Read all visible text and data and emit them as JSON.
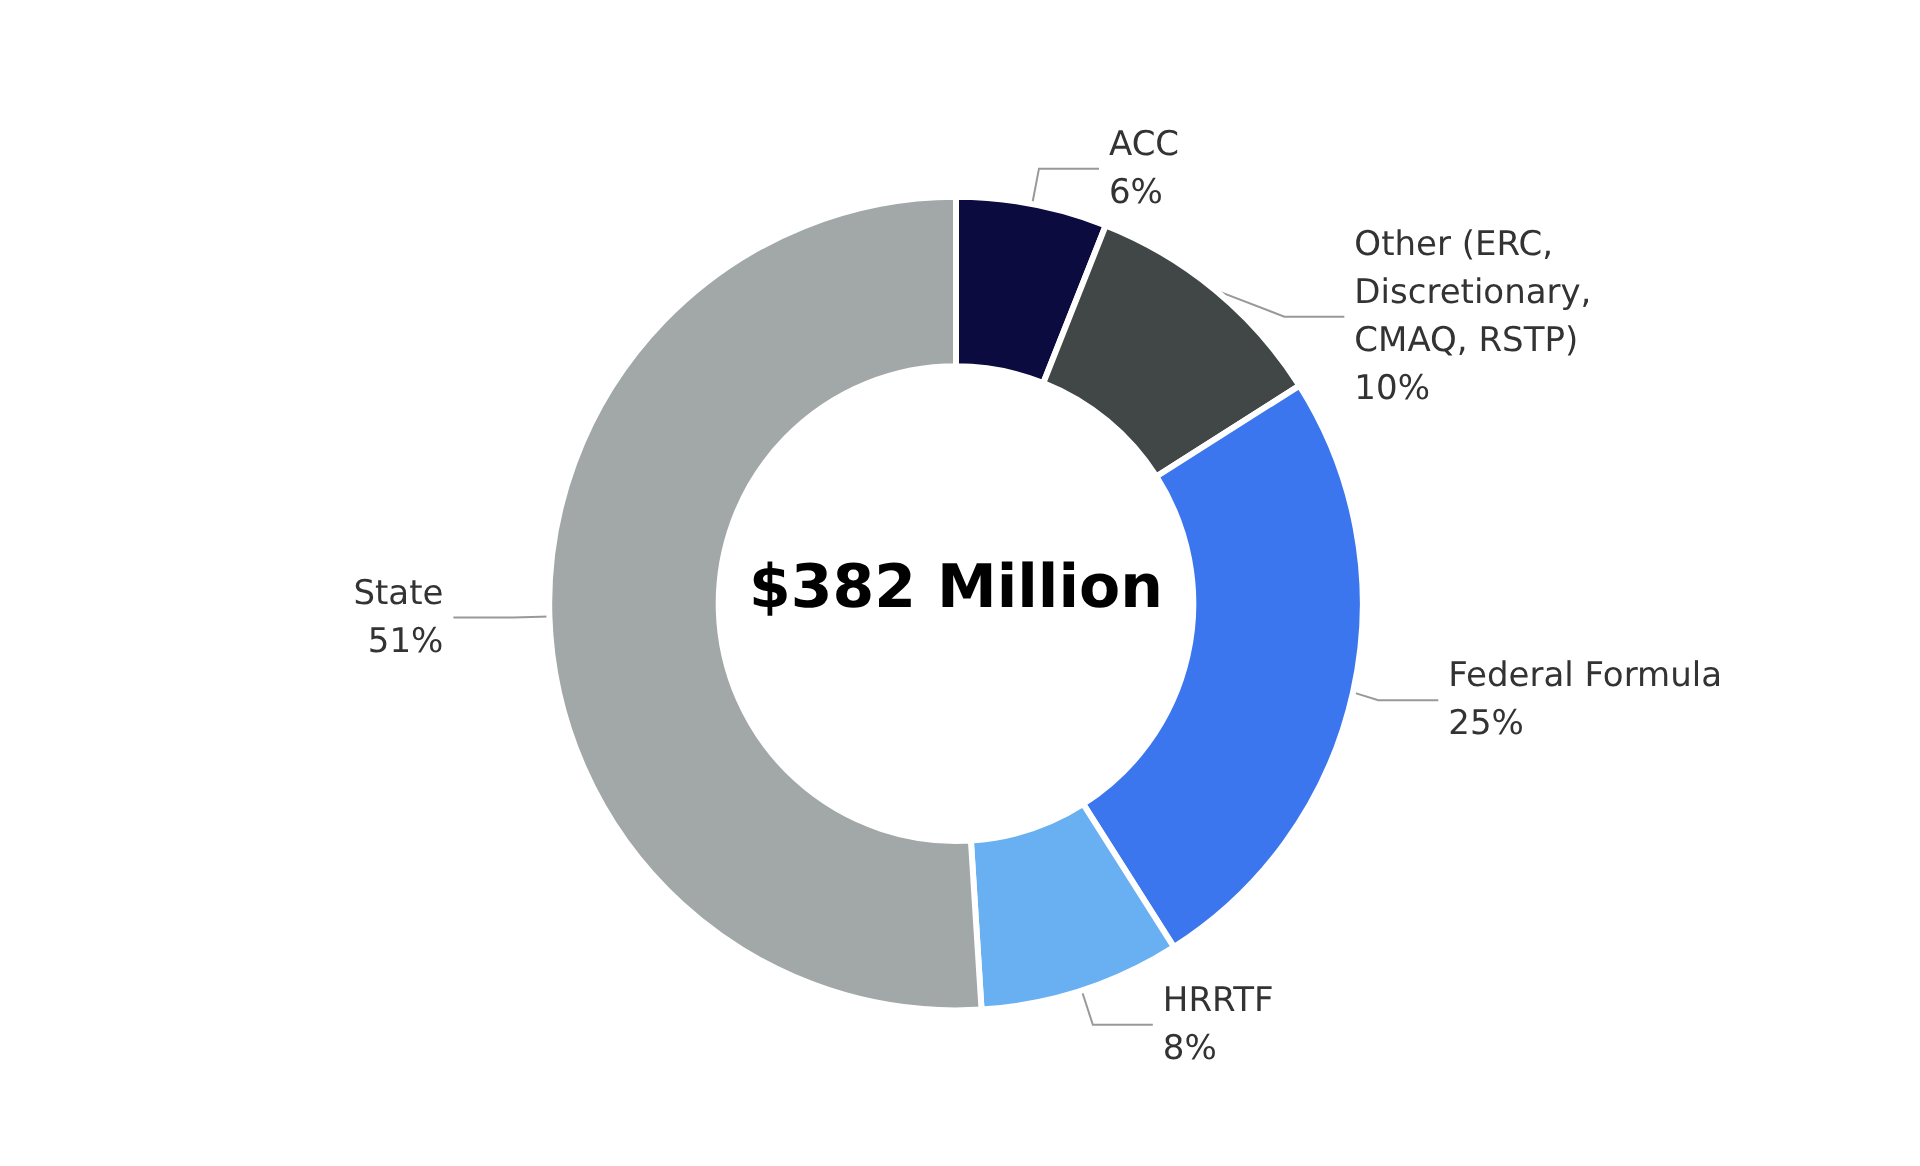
{
  "chart_data": {
    "type": "donut",
    "categories": [
      "ACC",
      "Other (ERC, Discretionary, CMAQ, RSTP)",
      "Federal Formula",
      "HRRTF",
      "State"
    ],
    "values": [
      6,
      10,
      25,
      8,
      51
    ],
    "value_labels": [
      "6%",
      "10%",
      "25%",
      "8%",
      "51%"
    ],
    "colors": [
      "#0b0b3f",
      "#414647",
      "#3b76ee",
      "#69b0f3",
      "#a2a7a7"
    ],
    "annotations": [
      "$382 Million"
    ],
    "legend": false
  }
}
